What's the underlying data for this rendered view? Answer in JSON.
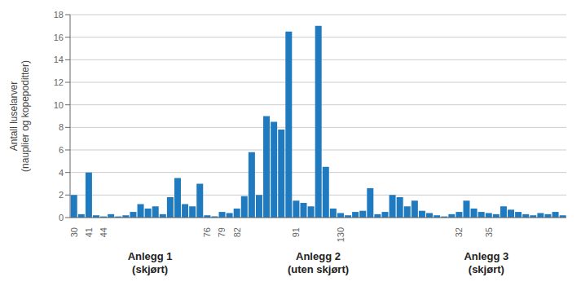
{
  "chart_data": {
    "type": "bar",
    "y_label": "Antall luselarver\n(nauplier og kopepoditter)",
    "categories": [
      "30",
      null,
      "41",
      null,
      "44",
      null,
      null,
      null,
      null,
      null,
      null,
      null,
      null,
      null,
      null,
      null,
      null,
      null,
      "76",
      null,
      "79",
      null,
      "82",
      null,
      null,
      null,
      null,
      null,
      null,
      null,
      "91",
      null,
      null,
      null,
      null,
      null,
      "130",
      null,
      null,
      null,
      null,
      null,
      null,
      null,
      null,
      null,
      null,
      null,
      null,
      null,
      null,
      null,
      "32",
      null,
      null,
      null,
      "35",
      null,
      null,
      null,
      null,
      null,
      null,
      null,
      null,
      null,
      null
    ],
    "values": [
      2.0,
      0.3,
      4.0,
      0.2,
      0.1,
      0.3,
      0.1,
      0.2,
      0.5,
      1.2,
      0.8,
      1.0,
      0.3,
      1.8,
      3.5,
      1.2,
      1.0,
      3.0,
      0.2,
      0.1,
      0.5,
      0.4,
      0.8,
      1.9,
      5.8,
      2.0,
      9.0,
      8.5,
      7.8,
      16.5,
      1.5,
      1.3,
      1.0,
      17.0,
      4.5,
      0.8,
      0.4,
      0.2,
      0.5,
      0.6,
      2.6,
      0.3,
      0.5,
      2.0,
      1.8,
      1.0,
      1.5,
      0.6,
      0.4,
      0.2,
      0.1,
      0.3,
      0.5,
      1.5,
      0.8,
      0.5,
      0.4,
      0.3,
      1.0,
      0.7,
      0.5,
      0.3,
      0.2,
      0.4,
      0.3,
      0.5,
      0.2
    ],
    "color": "#1f7abf",
    "ylim": [
      0,
      18
    ],
    "yticks": [
      0,
      2,
      4,
      6,
      8,
      10,
      12,
      14,
      16,
      18
    ],
    "grid": true,
    "annotations": [
      "Anlegg 1\n(skjørt)",
      "Anlegg 2\n(uten skjørt)",
      "Anlegg 3\n(skjørt)"
    ]
  }
}
